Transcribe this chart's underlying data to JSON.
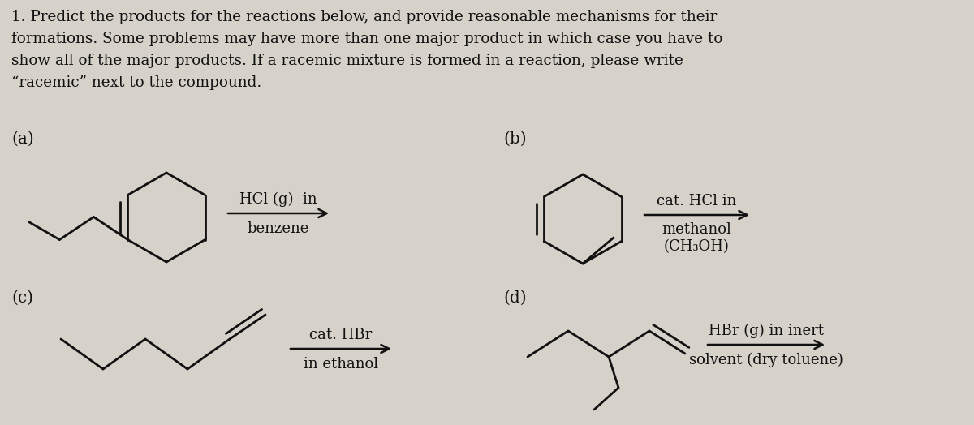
{
  "bg_color": "#d6d2ca",
  "text_color": "#111111",
  "title_lines": [
    "1. Predict the products for the reactions below, and provide reasonable mechanisms for their",
    "formations. Some problems may have more than one major product in which case you have to",
    "show all of the major products. If a racemic mixture is formed in a reaction, please write",
    "“racemic” next to the compound."
  ],
  "title_fontsize": 13.2,
  "label_fontsize": 14.5,
  "reagent_fontsize": 13.0,
  "labels": [
    "(a)",
    "(b)",
    "(c)",
    "(d)"
  ],
  "reagents_a": [
    "HCl (g)  in",
    "benzene"
  ],
  "reagents_b": [
    "cat. HCl in",
    "methanol",
    "(CH₃OH)"
  ],
  "reagents_c": [
    "cat. HBr",
    "in ethanol"
  ],
  "reagents_d": [
    "HBr (g) in inert",
    "solvent (dry toluene)"
  ]
}
